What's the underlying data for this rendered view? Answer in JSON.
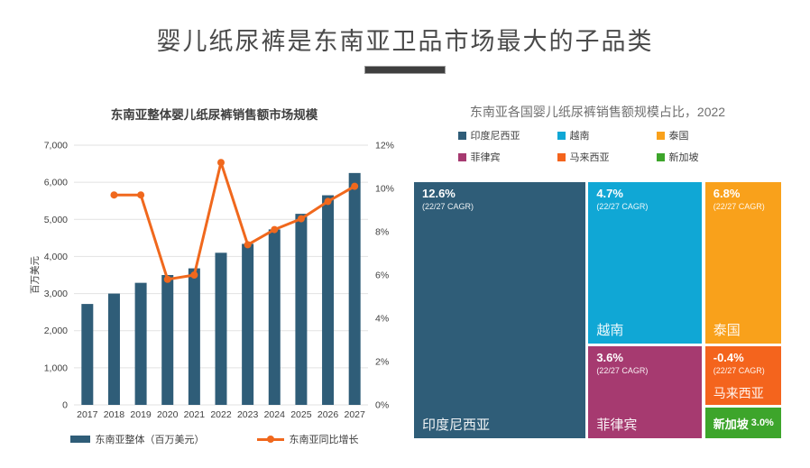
{
  "slide": {
    "title": "婴儿纸尿裤是东南亚卫品市场最大的子品类"
  },
  "chart_data": [
    {
      "type": "bar+line",
      "title": "东南亚整体婴儿纸尿裤销售额市场规模",
      "categories": [
        "2017",
        "2018",
        "2019",
        "2020",
        "2021",
        "2022",
        "2023",
        "2024",
        "2025",
        "2026",
        "2027"
      ],
      "series": [
        {
          "name": "东南亚整体（百万美元）",
          "chart": "bar",
          "axis": "left",
          "color": "#2F5D78",
          "values": [
            2720,
            3000,
            3290,
            3500,
            3680,
            4100,
            4340,
            4730,
            5150,
            5650,
            6250
          ]
        },
        {
          "name": "东南亚同比增长",
          "chart": "line",
          "axis": "right",
          "color": "#F0681D",
          "values": [
            null,
            9.7,
            9.7,
            5.8,
            6.0,
            11.2,
            7.4,
            8.1,
            8.6,
            9.4,
            10.1
          ]
        }
      ],
      "ylabel_left": "百万美元",
      "ylim_left": [
        0,
        7000
      ],
      "yticks_left": [
        "0",
        "1,000",
        "2,000",
        "3,000",
        "4,000",
        "5,000",
        "6,000",
        "7,000"
      ],
      "ylim_right": [
        0,
        12
      ],
      "yticks_right": [
        "0%",
        "2%",
        "4%",
        "6%",
        "8%",
        "10%",
        "12%"
      ],
      "grid": true,
      "legend_position": "bottom"
    },
    {
      "type": "treemap",
      "title": "东南亚各国婴儿纸尿裤销售额规模占比，2022",
      "legend_position": "top",
      "items": [
        {
          "name": "印度尼西亚",
          "cagr": "12.6%",
          "cagr_note": "(22/27 CAGR)",
          "share_pct_est": 47.9,
          "color": "#2F5D78"
        },
        {
          "name": "越南",
          "cagr": "4.7%",
          "cagr_note": "(22/27 CAGR)",
          "share_pct_est": 19.9,
          "color": "#10A7D5"
        },
        {
          "name": "泰国",
          "cagr": "6.8%",
          "cagr_note": "(22/27 CAGR)",
          "share_pct_est": 13.5,
          "color": "#F9A11B"
        },
        {
          "name": "菲律宾",
          "cagr": "3.6%",
          "cagr_note": "(22/27 CAGR)",
          "share_pct_est": 11.3,
          "color": "#A63A70"
        },
        {
          "name": "马来西亚",
          "cagr": "-0.4%",
          "cagr_note": "(22/27 CAGR)",
          "share_pct_est": 4.9,
          "color": "#F4641D"
        },
        {
          "name": "新加坡",
          "cagr": "3.0%",
          "cagr_note": "",
          "share_pct_est": 2.6,
          "color": "#3DA52B"
        }
      ]
    }
  ]
}
